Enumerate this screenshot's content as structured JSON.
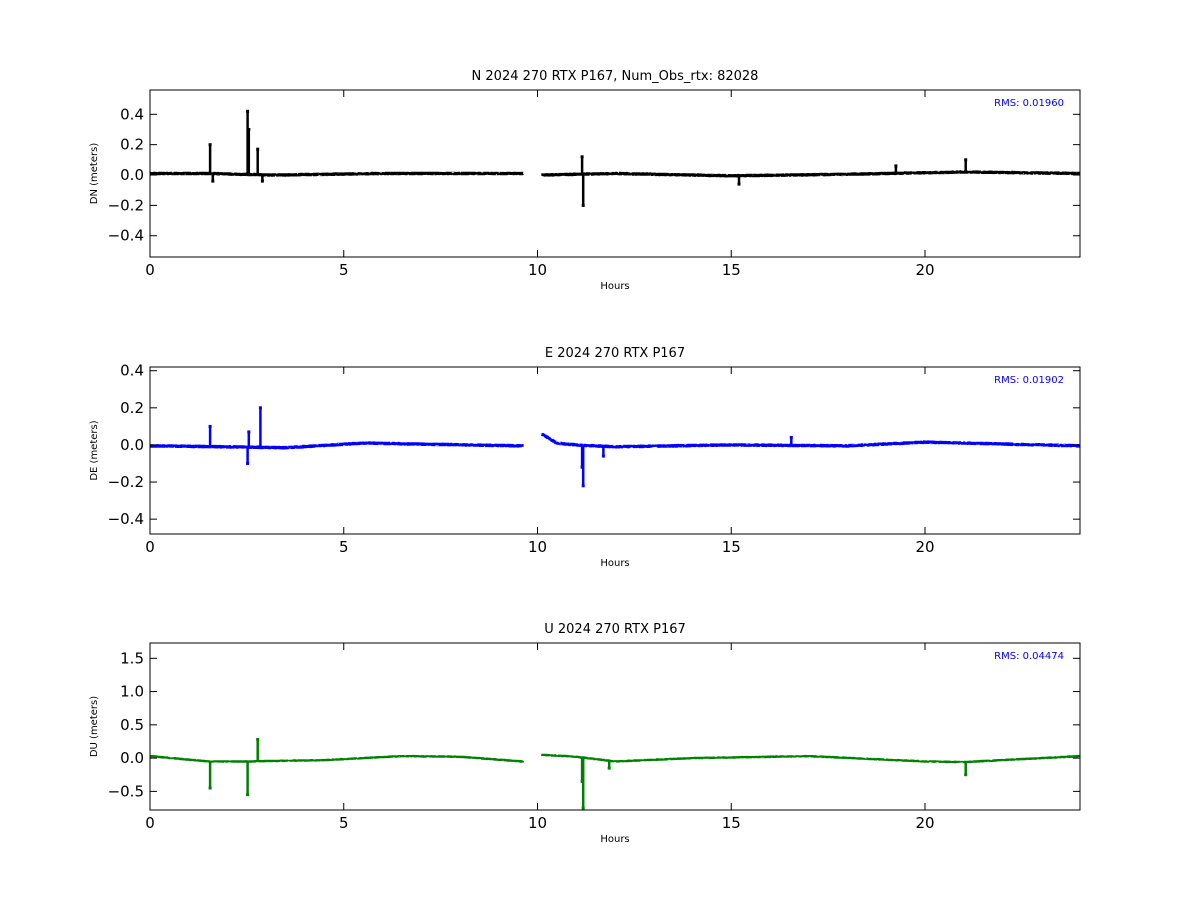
{
  "chart_data": [
    {
      "type": "scatter",
      "title": "N 2024 270 RTX  P167, Num_Obs_rtx: 82028",
      "xlabel": "Hours",
      "ylabel": "DN (meters)",
      "xlim": [
        0,
        24
      ],
      "ylim": [
        -0.54,
        0.56
      ],
      "xticks": [
        0,
        5,
        10,
        15,
        20
      ],
      "yticks": [
        -0.4,
        -0.2,
        0.0,
        0.2,
        0.4
      ],
      "ytick_labels": [
        "−0.4",
        "−0.2",
        "0.0",
        "0.2",
        "0.4"
      ],
      "annotation": "RMS:  0.01960",
      "color": "#000000",
      "annotation_color": "#0000ff",
      "gap": [
        9.62,
        10.12
      ],
      "noise": 0.012,
      "baseline": [
        [
          0,
          0.01
        ],
        [
          1.5,
          0.01
        ],
        [
          3.2,
          0.0
        ],
        [
          6,
          0.01
        ],
        [
          9.6,
          0.01
        ],
        [
          10.1,
          0.0
        ],
        [
          12,
          0.01
        ],
        [
          15,
          -0.005
        ],
        [
          18,
          0.005
        ],
        [
          21,
          0.02
        ],
        [
          24,
          0.01
        ]
      ],
      "features": [
        {
          "x": 1.55,
          "y": 0.2
        },
        {
          "x": 1.62,
          "y": -0.04
        },
        {
          "x": 2.52,
          "y": 0.42
        },
        {
          "x": 2.55,
          "y": 0.3
        },
        {
          "x": 2.78,
          "y": 0.17
        },
        {
          "x": 2.9,
          "y": -0.04
        },
        {
          "x": 11.15,
          "y": 0.12
        },
        {
          "x": 11.18,
          "y": -0.2
        },
        {
          "x": 15.2,
          "y": -0.06
        },
        {
          "x": 19.25,
          "y": 0.06
        },
        {
          "x": 21.05,
          "y": 0.1
        }
      ]
    },
    {
      "type": "scatter",
      "title": "E 2024 270 RTX  P167",
      "xlabel": "Hours",
      "ylabel": "DE (meters)",
      "xlim": [
        0,
        24
      ],
      "ylim": [
        -0.48,
        0.42
      ],
      "xticks": [
        0,
        5,
        10,
        15,
        20
      ],
      "yticks": [
        -0.4,
        -0.2,
        0.0,
        0.2,
        0.4
      ],
      "ytick_labels": [
        "−0.4",
        "−0.2",
        "0.0",
        "0.2",
        "0.4"
      ],
      "annotation": "RMS:  0.01902",
      "color": "#0000ff",
      "annotation_color": "#0000ff",
      "gap": [
        9.62,
        10.12
      ],
      "noise": 0.01,
      "baseline": [
        [
          0,
          -0.005
        ],
        [
          2,
          -0.01
        ],
        [
          3.5,
          -0.015
        ],
        [
          5.5,
          0.01
        ],
        [
          9.6,
          -0.005
        ],
        [
          10.1,
          0.06
        ],
        [
          10.5,
          0.01
        ],
        [
          11,
          0.0
        ],
        [
          12,
          -0.01
        ],
        [
          15,
          0.0
        ],
        [
          18,
          -0.005
        ],
        [
          20,
          0.015
        ],
        [
          24,
          -0.005
        ]
      ],
      "features": [
        {
          "x": 1.55,
          "y": 0.1
        },
        {
          "x": 2.52,
          "y": -0.1
        },
        {
          "x": 2.55,
          "y": 0.07
        },
        {
          "x": 2.85,
          "y": 0.2
        },
        {
          "x": 11.15,
          "y": -0.12
        },
        {
          "x": 11.18,
          "y": -0.22
        },
        {
          "x": 11.7,
          "y": -0.06
        },
        {
          "x": 16.55,
          "y": 0.04
        }
      ]
    },
    {
      "type": "scatter",
      "title": "U 2024 270 RTX  P167",
      "xlabel": "Hours",
      "ylabel": "DU (meters)",
      "xlim": [
        0,
        24
      ],
      "ylim": [
        -0.78,
        1.73
      ],
      "xticks": [
        0,
        5,
        10,
        15,
        20
      ],
      "yticks": [
        -0.5,
        0.0,
        0.5,
        1.0,
        1.5
      ],
      "ytick_labels": [
        "−0.5",
        "0.0",
        "0.5",
        "1.0",
        "1.5"
      ],
      "annotation": "RMS:  0.04474",
      "color": "#008000",
      "annotation_color": "#0000ff",
      "gap": [
        9.62,
        10.12
      ],
      "noise": 0.02,
      "baseline": [
        [
          0,
          0.03
        ],
        [
          1.5,
          -0.05
        ],
        [
          2.5,
          -0.05
        ],
        [
          4.5,
          -0.03
        ],
        [
          6.5,
          0.03
        ],
        [
          8,
          0.02
        ],
        [
          9.6,
          -0.05
        ],
        [
          10.1,
          0.05
        ],
        [
          11,
          0.02
        ],
        [
          12,
          -0.05
        ],
        [
          14,
          0.0
        ],
        [
          17,
          0.03
        ],
        [
          20,
          -0.05
        ],
        [
          21,
          -0.06
        ],
        [
          24,
          0.03
        ]
      ],
      "features": [
        {
          "x": 1.55,
          "y": -0.45
        },
        {
          "x": 2.52,
          "y": -0.55
        },
        {
          "x": 2.78,
          "y": 0.28
        },
        {
          "x": 11.15,
          "y": -0.35
        },
        {
          "x": 11.18,
          "y": -0.75
        },
        {
          "x": 11.85,
          "y": -0.15
        },
        {
          "x": 21.05,
          "y": -0.25
        }
      ]
    }
  ]
}
